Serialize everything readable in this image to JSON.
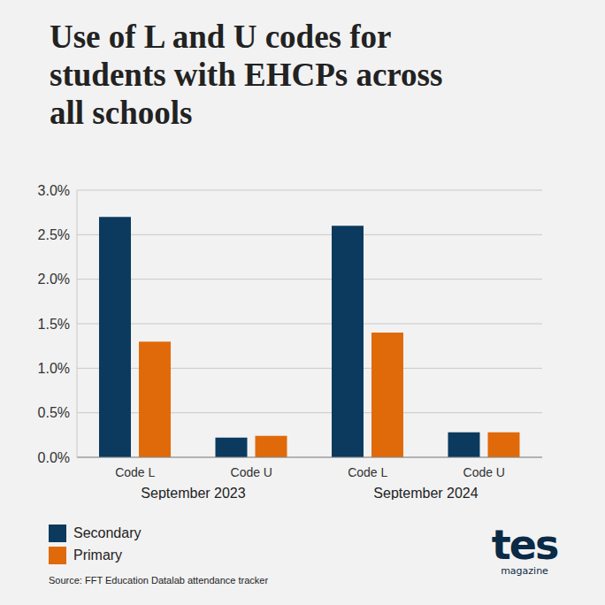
{
  "chart_data": {
    "type": "bar",
    "title": "Use of L and U codes for students with EHCPs across all schools",
    "categories": [
      "Code L",
      "Code U",
      "Code L",
      "Code U"
    ],
    "groups": [
      "September 2023",
      "September 2024"
    ],
    "series": [
      {
        "name": "Secondary",
        "color": "#0b3a5e",
        "values": [
          2.7,
          0.22,
          2.6,
          0.28
        ]
      },
      {
        "name": "Primary",
        "color": "#e06a0a",
        "values": [
          1.3,
          0.24,
          1.4,
          0.28
        ]
      }
    ],
    "ylim": [
      0,
      3
    ],
    "yticks": [
      {
        "value": 0,
        "label": "0.0%"
      },
      {
        "value": 0.5,
        "label": "0.5%"
      },
      {
        "value": 1,
        "label": "1.0%"
      },
      {
        "value": 1.5,
        "label": "1.5%"
      },
      {
        "value": 2,
        "label": "2.0%"
      },
      {
        "value": 2.5,
        "label": "2.5%"
      },
      {
        "value": 3,
        "label": "3.0%"
      }
    ],
    "grid": true,
    "legend": "bottom",
    "source": "Source: FFT Education Datalab attendance tracker",
    "logo": "tes",
    "logo_subtitle": "magazine"
  }
}
